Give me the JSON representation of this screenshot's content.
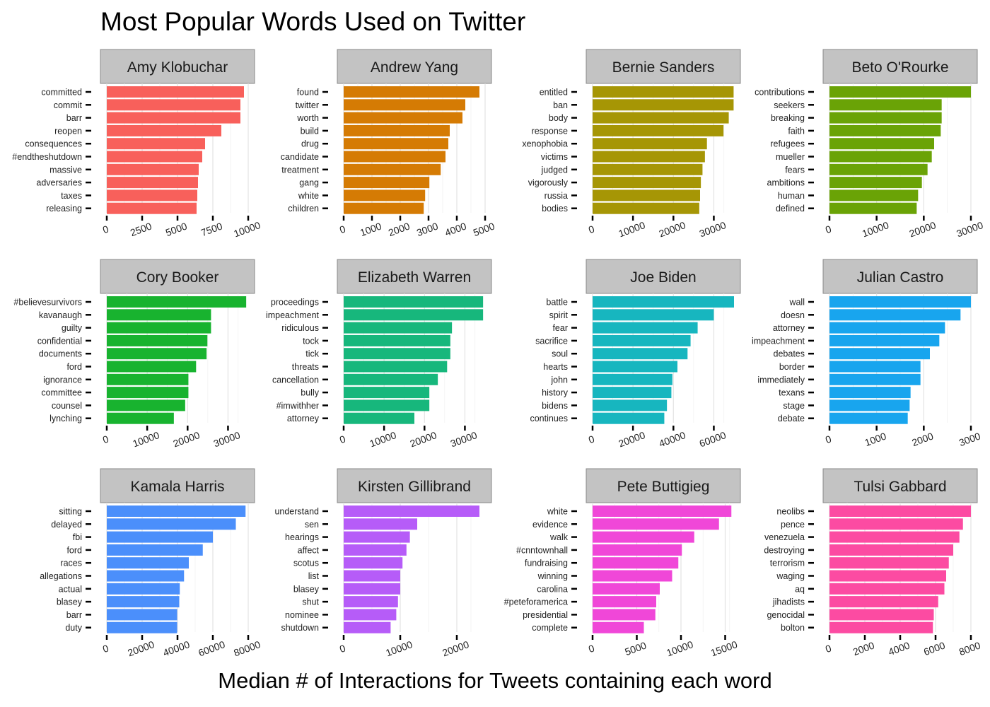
{
  "chart_data": {
    "type": "bar",
    "orientation": "horizontal",
    "title": "Most Popular Words Used on Twitter",
    "xlabel": "Median # of Interactions for Tweets containing each word",
    "ylabel": "",
    "grid": true,
    "layout": "facet grid 3 rows x 4 columns",
    "panels": [
      {
        "name": "Amy Klobuchar",
        "color": "#f8605b",
        "xlim": [
          0,
          10000
        ],
        "ticks": [
          "0",
          "2500",
          "5000",
          "7500",
          "10000"
        ],
        "categories": [
          "committed",
          "commit",
          "barr",
          "reopen",
          "consequences",
          "#endtheshutdown",
          "massive",
          "adversaries",
          "taxes",
          "releasing"
        ],
        "values": [
          9700,
          9450,
          9450,
          8100,
          6950,
          6750,
          6500,
          6450,
          6400,
          6350
        ]
      },
      {
        "name": "Andrew Yang",
        "color": "#d57b04",
        "xlim": [
          0,
          5000
        ],
        "ticks": [
          "0",
          "1000",
          "2000",
          "3000",
          "4000",
          "5000"
        ],
        "categories": [
          "found",
          "twitter",
          "worth",
          "build",
          "drug",
          "candidate",
          "treatment",
          "gang",
          "white",
          "children"
        ],
        "values": [
          4800,
          4300,
          4200,
          3750,
          3700,
          3600,
          3430,
          3030,
          2880,
          2830
        ]
      },
      {
        "name": "Bernie Sanders",
        "color": "#a69605",
        "xlim": [
          0,
          35000
        ],
        "ticks": [
          "0",
          "10000",
          "20000",
          "30000"
        ],
        "categories": [
          "entitled",
          "ban",
          "body",
          "response",
          "xenophobia",
          "victims",
          "judged",
          "vigorously",
          "russia",
          "bodies"
        ],
        "values": [
          34900,
          34900,
          33700,
          32400,
          28300,
          27800,
          27200,
          26800,
          26600,
          26400
        ]
      },
      {
        "name": "Beto O'Rourke",
        "color": "#6aa306",
        "xlim": [
          0,
          30000
        ],
        "ticks": [
          "0",
          "10000",
          "20000",
          "30000"
        ],
        "categories": [
          "contributions",
          "seekers",
          "breaking",
          "faith",
          "refugees",
          "mueller",
          "fears",
          "ambitions",
          "human",
          "defined"
        ],
        "values": [
          30000,
          23800,
          23800,
          23600,
          22200,
          21700,
          20800,
          19600,
          18800,
          18500
        ]
      },
      {
        "name": "Cory Booker",
        "color": "#18b32f",
        "xlim": [
          0,
          35000
        ],
        "ticks": [
          "0",
          "10000",
          "20000",
          "30000"
        ],
        "categories": [
          "#believesurvivors",
          "kavanaugh",
          "guilty",
          "confidential",
          "documents",
          "ford",
          "ignorance",
          "committee",
          "counsel",
          "lynching"
        ],
        "values": [
          34500,
          25800,
          25800,
          24900,
          24700,
          22100,
          20200,
          20200,
          19400,
          16600
        ]
      },
      {
        "name": "Elizabeth Warren",
        "color": "#17b77c",
        "xlim": [
          0,
          35000
        ],
        "ticks": [
          "0",
          "10000",
          "20000",
          "30000"
        ],
        "categories": [
          "proceedings",
          "impeachment",
          "ridiculous",
          "tock",
          "tick",
          "threats",
          "cancellation",
          "bully",
          "#imwithher",
          "attorney"
        ],
        "values": [
          34500,
          34500,
          26800,
          26400,
          26400,
          25600,
          23300,
          21200,
          21200,
          17500
        ]
      },
      {
        "name": "Joe Biden",
        "color": "#17b6bf",
        "xlim": [
          0,
          70000
        ],
        "ticks": [
          "0",
          "20000",
          "40000",
          "60000"
        ],
        "categories": [
          "battle",
          "spirit",
          "fear",
          "sacrifice",
          "soul",
          "hearts",
          "john",
          "history",
          "bidens",
          "continues"
        ],
        "values": [
          70000,
          60000,
          52000,
          48500,
          47000,
          42000,
          39500,
          39000,
          36800,
          35500
        ]
      },
      {
        "name": "Julian Castro",
        "color": "#18a5ee",
        "xlim": [
          0,
          3000
        ],
        "ticks": [
          "0",
          "1000",
          "2000",
          "3000"
        ],
        "categories": [
          "wall",
          "doesn",
          "attorney",
          "impeachment",
          "debates",
          "border",
          "immediately",
          "texans",
          "stage",
          "debate"
        ],
        "values": [
          3000,
          2780,
          2450,
          2330,
          2130,
          1930,
          1930,
          1720,
          1700,
          1660
        ]
      },
      {
        "name": "Kamala Harris",
        "color": "#4b8ffb",
        "xlim": [
          0,
          80000
        ],
        "ticks": [
          "0",
          "20000",
          "40000",
          "60000",
          "80000"
        ],
        "categories": [
          "sitting",
          "delayed",
          "fbi",
          "ford",
          "races",
          "allegations",
          "actual",
          "blasey",
          "barr",
          "duty"
        ],
        "values": [
          78500,
          73000,
          60000,
          54300,
          46400,
          43700,
          41300,
          41000,
          39800,
          39800
        ]
      },
      {
        "name": "Kirsten Gillibrand",
        "color": "#b65cf8",
        "xlim": [
          0,
          25000
        ],
        "ticks": [
          "0",
          "10000",
          "20000"
        ],
        "categories": [
          "understand",
          "sen",
          "hearings",
          "affect",
          "scotus",
          "list",
          "blasey",
          "shut",
          "nominee",
          "shutdown"
        ],
        "values": [
          24000,
          13000,
          11700,
          11100,
          10400,
          10000,
          10000,
          9600,
          9300,
          8300
        ]
      },
      {
        "name": "Pete Buttigieg",
        "color": "#f047d8",
        "xlim": [
          0,
          16000
        ],
        "ticks": [
          "0",
          "5000",
          "10000",
          "15000"
        ],
        "categories": [
          "white",
          "evidence",
          "walk",
          "#cnntownhall",
          "fundraising",
          "winning",
          "carolina",
          "#peteforamerica",
          "presidential",
          "complete"
        ],
        "values": [
          15700,
          14300,
          11500,
          10100,
          9700,
          9000,
          7600,
          7200,
          7100,
          5800
        ]
      },
      {
        "name": "Tulsi Gabbard",
        "color": "#fc4ba2",
        "xlim": [
          0,
          8000
        ],
        "ticks": [
          "0",
          "2000",
          "4000",
          "6000",
          "8000"
        ],
        "categories": [
          "neolibs",
          "pence",
          "venezuela",
          "destroying",
          "terrorism",
          "waging",
          "aq",
          "jihadists",
          "genocidal",
          "bolton"
        ],
        "values": [
          8000,
          7550,
          7350,
          7000,
          6750,
          6600,
          6500,
          6150,
          5900,
          5850
        ]
      }
    ]
  }
}
